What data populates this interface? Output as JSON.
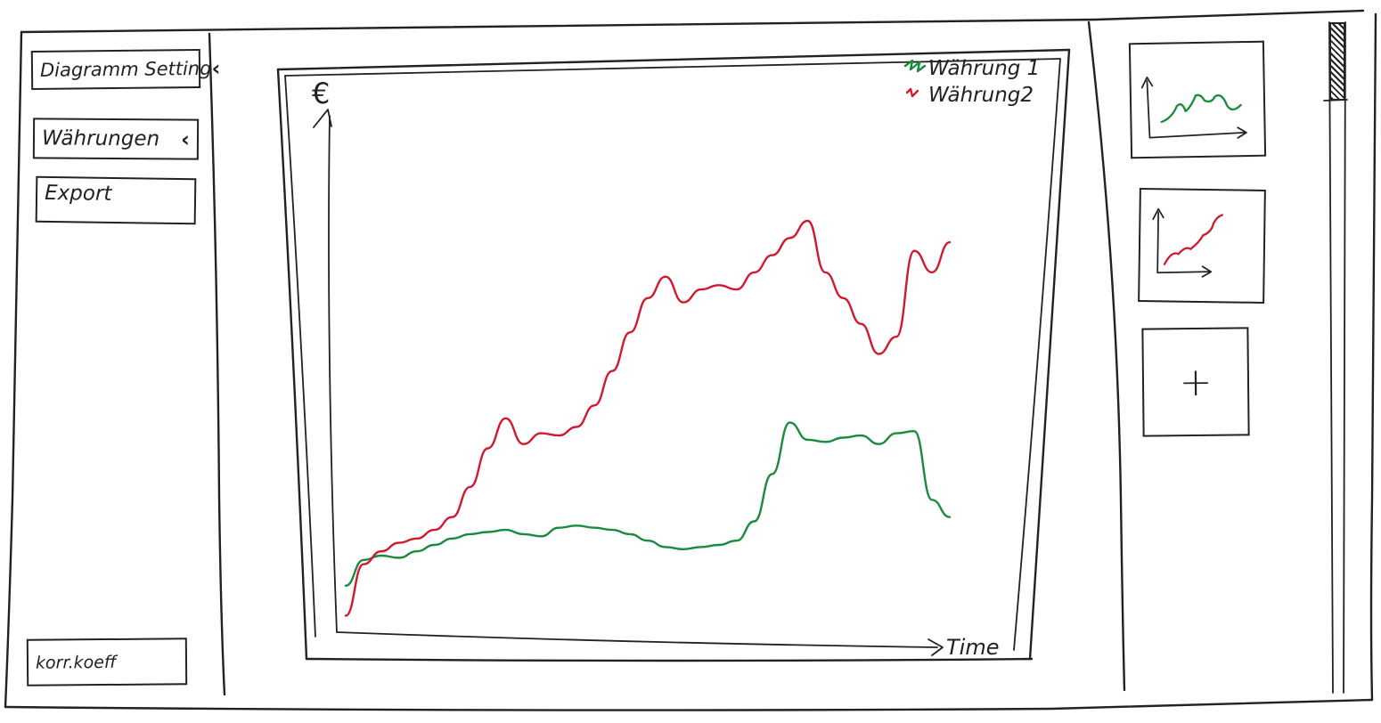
{
  "sidebar": {
    "diagram_settings_label": "Diagramm Setting",
    "waehrungen_label": "Währungen",
    "export_label": "Export",
    "korr_koeff_label": "korr.koeff"
  },
  "chart": {
    "y_unit": "€",
    "x_label": "Time",
    "legend": [
      "Währung 1",
      "Währung2"
    ]
  },
  "colors": {
    "waehrung1": "#1a8a3c",
    "waehrung2": "#d0192e",
    "ink": "#222222"
  },
  "icons": {
    "collapse": "chevron-left-icon",
    "add": "plus-icon"
  },
  "thumbnails": [
    {
      "series_color": "#1a8a3c"
    },
    {
      "series_color": "#d0192e"
    },
    {
      "label": "+"
    }
  ],
  "chart_data": {
    "type": "line",
    "title": "",
    "xlabel": "Time",
    "ylabel": "€",
    "grid": false,
    "legend_position": "top-right",
    "x": [
      0,
      1,
      2,
      3,
      4,
      5,
      6,
      7,
      8,
      9,
      10,
      11,
      12,
      13,
      14,
      15,
      16,
      17,
      18,
      19,
      20,
      21,
      22,
      23,
      24,
      25,
      26,
      27,
      28,
      29,
      30,
      31,
      32,
      33,
      34
    ],
    "series": [
      {
        "name": "Währung 1",
        "color": "#1a8a3c",
        "values": [
          1.0,
          1.6,
          1.7,
          1.65,
          1.8,
          1.95,
          2.1,
          2.2,
          2.25,
          2.3,
          2.2,
          2.15,
          2.35,
          2.4,
          2.35,
          2.3,
          2.2,
          2.05,
          1.9,
          1.85,
          1.9,
          1.95,
          2.05,
          2.5,
          3.6,
          4.8,
          4.4,
          4.35,
          4.45,
          4.5,
          4.3,
          4.55,
          4.6,
          3.0,
          2.6
        ]
      },
      {
        "name": "Währung2",
        "color": "#d0192e",
        "values": [
          0.3,
          1.5,
          1.8,
          2.0,
          2.1,
          2.3,
          2.6,
          3.3,
          4.2,
          4.9,
          4.3,
          4.55,
          4.5,
          4.7,
          5.2,
          6.0,
          6.9,
          7.7,
          8.2,
          7.6,
          7.9,
          8.0,
          7.9,
          8.3,
          8.7,
          9.1,
          9.5,
          8.3,
          7.7,
          7.1,
          6.4,
          6.8,
          8.8,
          8.3,
          9.0
        ]
      }
    ]
  }
}
